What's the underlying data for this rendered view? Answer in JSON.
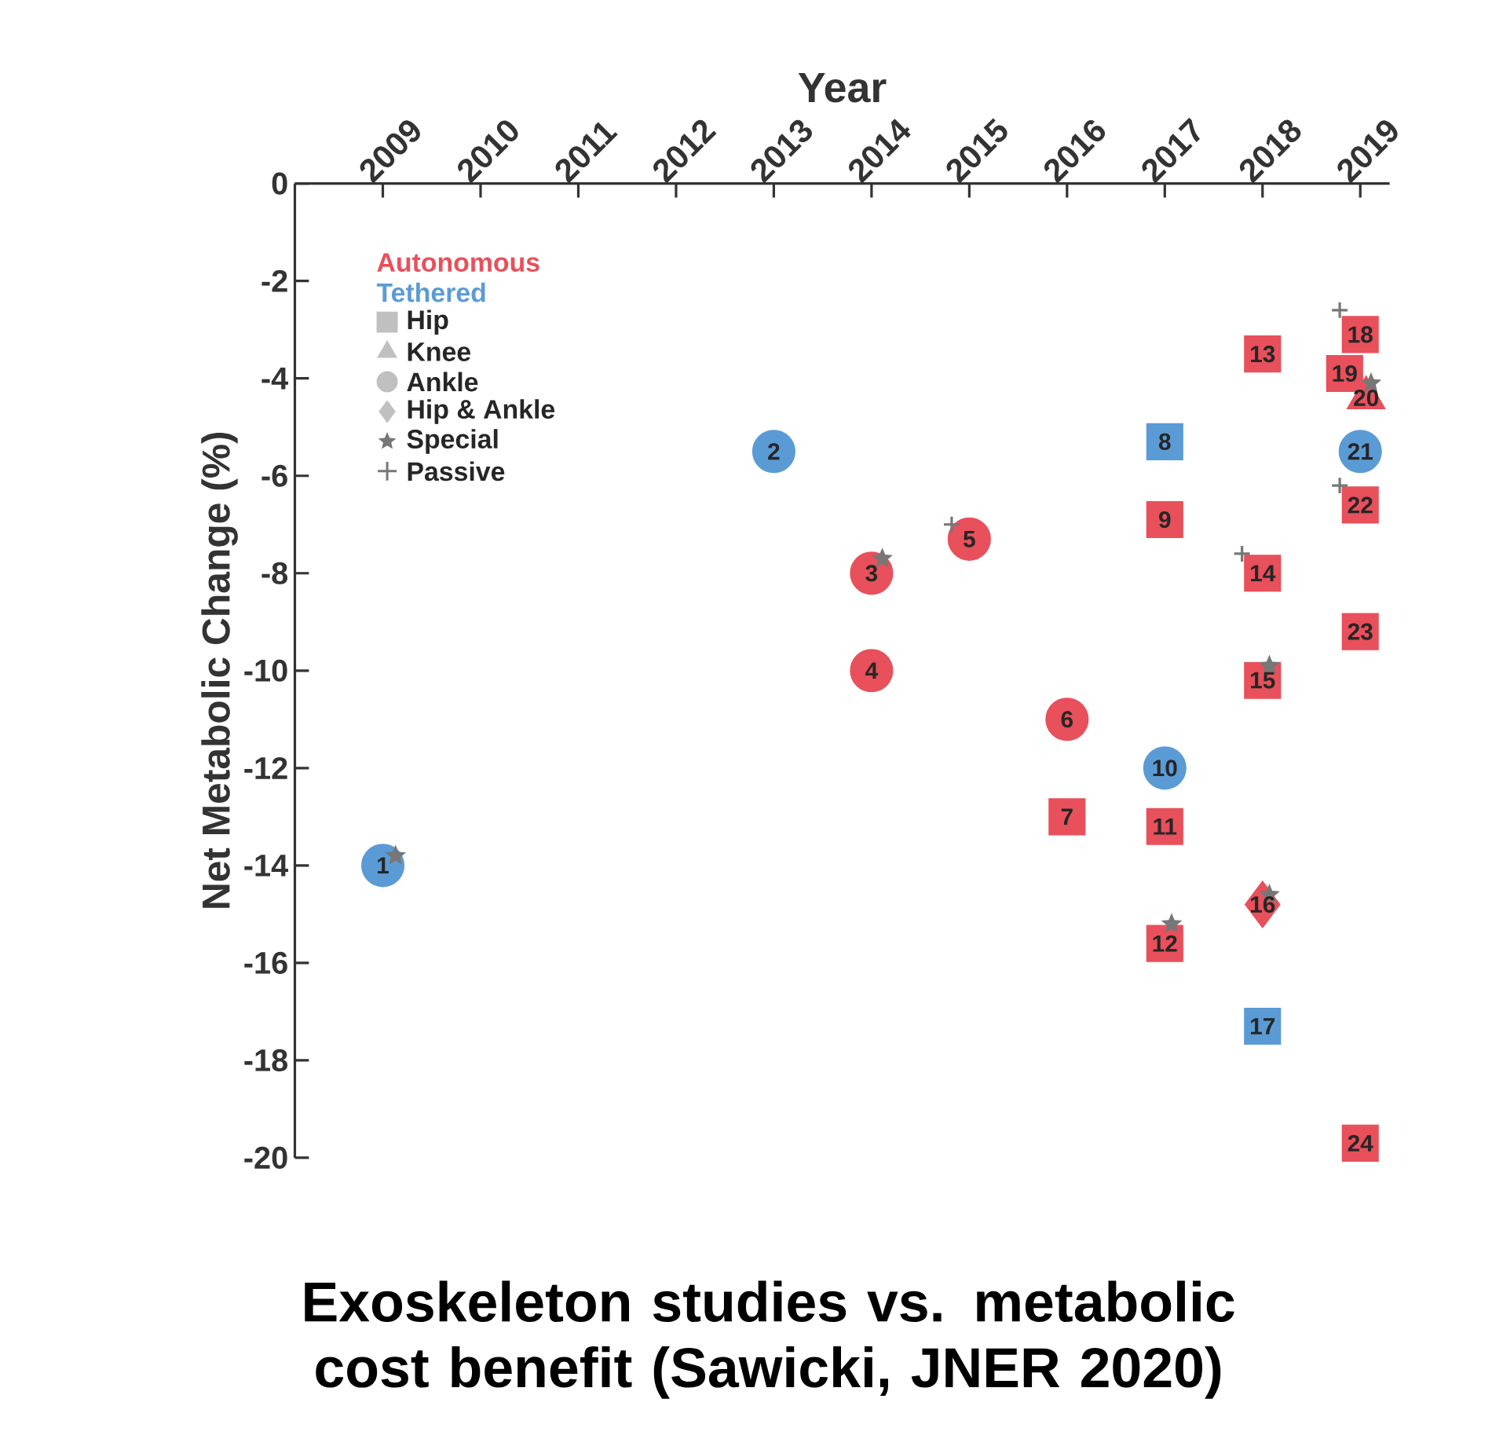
{
  "chart_data": {
    "type": "scatter",
    "title": "Exoskeleton studies vs. metabolic cost benefit (Sawicki, JNER 2020)",
    "xlabel": "Year",
    "ylabel": "Net Metabolic Change (%)",
    "annotations": [
      "Autonomous",
      "Tethered",
      "Hip",
      "Knee",
      "Ankle",
      "Hip & Ankle",
      {
        "text": "1",
        "x": 2009,
        "y": -14.0
      },
      {
        "text": "2",
        "x": 2013,
        "y": -5.5
      },
      {
        "text": "3",
        "x": 2014,
        "y": -8.0
      },
      {
        "text": "4",
        "x": 2014,
        "y": -10.0
      },
      {
        "text": "5",
        "x": 2015,
        "y": -7.3
      },
      {
        "text": "6",
        "x": 2016,
        "y": -11.0
      },
      {
        "text": "7",
        "x": 2016,
        "y": -13.0
      },
      {
        "text": "8",
        "x": 2017,
        "y": -5.3
      },
      {
        "text": "9",
        "x": 2017,
        "y": -6.9
      },
      {
        "text": "10",
        "x": 2017,
        "y": -12.0
      },
      {
        "text": "11",
        "x": 2017,
        "y": -13.2
      },
      {
        "text": "12",
        "x": 2017,
        "y": -15.6
      },
      {
        "text": "13",
        "x": 2018,
        "y": -3.5
      },
      {
        "text": "14",
        "x": 2018,
        "y": -8.0
      },
      {
        "text": "15",
        "x": 2018,
        "y": -10.2
      },
      {
        "text": "16",
        "x": 2018,
        "y": -14.8
      },
      {
        "text": "17",
        "x": 2018,
        "y": -17.3
      },
      {
        "text": "18",
        "x": 2019,
        "y": -3.1
      },
      {
        "text": "19",
        "x": 2018.84,
        "y": -3.9
      },
      {
        "text": "20",
        "x": 2019.06,
        "y": -4.4
      },
      {
        "text": "21",
        "x": 2019,
        "y": -5.5
      },
      {
        "text": "22",
        "x": 2019,
        "y": -6.6
      },
      {
        "text": "23",
        "x": 2019,
        "y": -9.2
      },
      {
        "text": "24",
        "x": 2019,
        "y": -19.7
      }
    ],
    "xlim": [
      2008.1,
      2019.3
    ],
    "xticks": [
      2009,
      2010,
      2011,
      2012,
      2013,
      2014,
      2015,
      2016,
      2017,
      2018,
      2019
    ],
    "ylim": [
      -20,
      0
    ],
    "yticks": [
      -20,
      -18,
      -16,
      -14,
      -12,
      -10,
      -8,
      -6,
      -4,
      -2,
      0
    ],
    "legend": "top left",
    "series": [
      {
        "marker": "square",
        "color": "#e8505b",
        "x": [
          2016,
          2017,
          2017,
          2017,
          2018,
          2018,
          2018,
          2019,
          2018.84,
          2019,
          2019,
          2019
        ],
        "values": [
          -13.0,
          -6.9,
          -13.2,
          -15.6,
          -3.5,
          -8.0,
          -10.2,
          -3.1,
          -3.9,
          -6.6,
          -9.2,
          -19.7
        ]
      },
      {
        "marker": "square",
        "color": "#5b9bd5",
        "x": [
          2017,
          2018
        ],
        "values": [
          -5.3,
          -17.3
        ]
      },
      {
        "marker": "triangle",
        "color": "#e8505b",
        "x": [
          2019.06
        ],
        "values": [
          -4.4
        ]
      },
      {
        "marker": "circle",
        "color": "#e8505b",
        "x": [
          2014,
          2014,
          2015,
          2016
        ],
        "values": [
          -8.0,
          -10.0,
          -7.3,
          -11.0
        ]
      },
      {
        "marker": "circle",
        "color": "#5b9bd5",
        "x": [
          2009,
          2013,
          2017,
          2019
        ],
        "values": [
          -14.0,
          -5.5,
          -12.0,
          -5.5
        ]
      },
      {
        "marker": "diamond",
        "color": "#e8505b",
        "x": [
          2018
        ],
        "values": [
          -14.8
        ]
      },
      {
        "name": "Special",
        "marker": "star",
        "color": "#777777",
        "x": [
          2009.13,
          2014.11,
          2017.07,
          2018.07,
          2018.07,
          2019.11
        ],
        "values": [
          -13.8,
          -7.7,
          -15.2,
          -9.9,
          -14.6,
          -4.1
        ]
      },
      {
        "name": "Passive",
        "marker": "cross",
        "color": "#777777",
        "x": [
          2014.82,
          2017.79,
          2018.79,
          2018.79
        ],
        "values": [
          -7.0,
          -7.6,
          -2.6,
          -6.2
        ]
      }
    ]
  }
}
